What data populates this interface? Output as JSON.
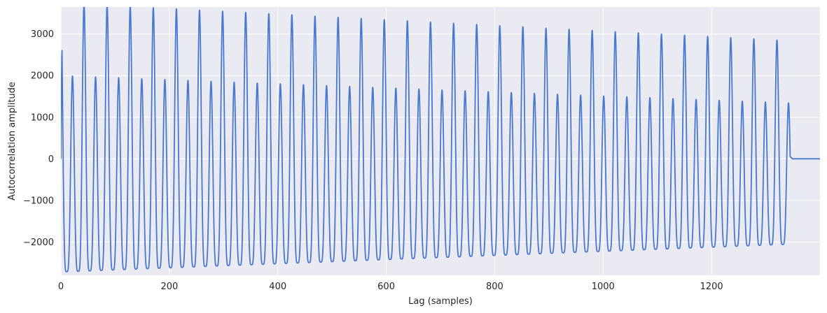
{
  "chart_data": {
    "type": "line",
    "title": "",
    "xlabel": "Lag (samples)",
    "ylabel": "Autocorrelation amplitude",
    "xlim": [
      0,
      1400
    ],
    "ylim": [
      -2800,
      3650
    ],
    "xticks": [
      0,
      200,
      400,
      600,
      800,
      1000,
      1200
    ],
    "yticks": [
      -2000,
      -1000,
      0,
      1000,
      2000,
      3000
    ],
    "grid": true,
    "legend": "none",
    "background": "#eaeaf2",
    "grid_color": "#ffffff",
    "line_color": "#4878d0",
    "series": [
      {
        "period_samples": 21.3,
        "signal_end_lag": 1345,
        "flat_after_end": 0,
        "major_peaks": {
          "x": [
            0,
            1330
          ],
          "y": [
            3750,
            2850
          ]
        },
        "minor_peaks": {
          "x": [
            0,
            1330
          ],
          "y": [
            2000,
            1350
          ]
        },
        "troughs": {
          "x": [
            0,
            1330
          ],
          "y": [
            -2720,
            -2060
          ]
        }
      }
    ]
  }
}
